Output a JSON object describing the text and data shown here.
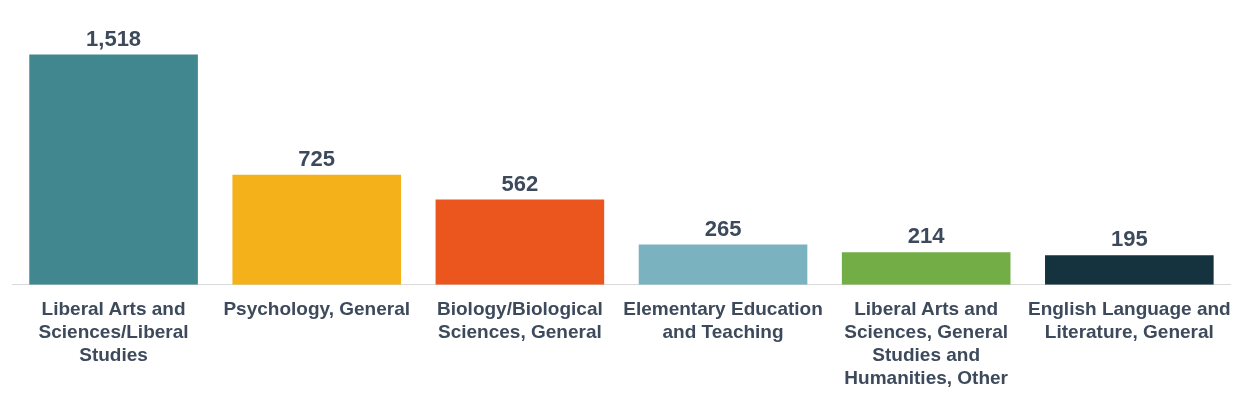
{
  "chart_data": {
    "type": "bar",
    "categories": [
      "Liberal Arts and Sciences/Liberal Studies",
      "Psychology, General",
      "Biology/Biological Sciences, General",
      "Elementary Education and Teaching",
      "Liberal Arts and Sciences, General Studies and Humanities, Other",
      "English Language and Literature, General"
    ],
    "values": [
      1518,
      725,
      562,
      265,
      214,
      195
    ],
    "colors": [
      "#41878f",
      "#f5b11a",
      "#eb561f",
      "#7ab3bf",
      "#73ad46",
      "#15323f"
    ],
    "value_labels": [
      "1,518",
      "725",
      "562",
      "265",
      "214",
      "195"
    ],
    "grid": false,
    "legend": false
  }
}
